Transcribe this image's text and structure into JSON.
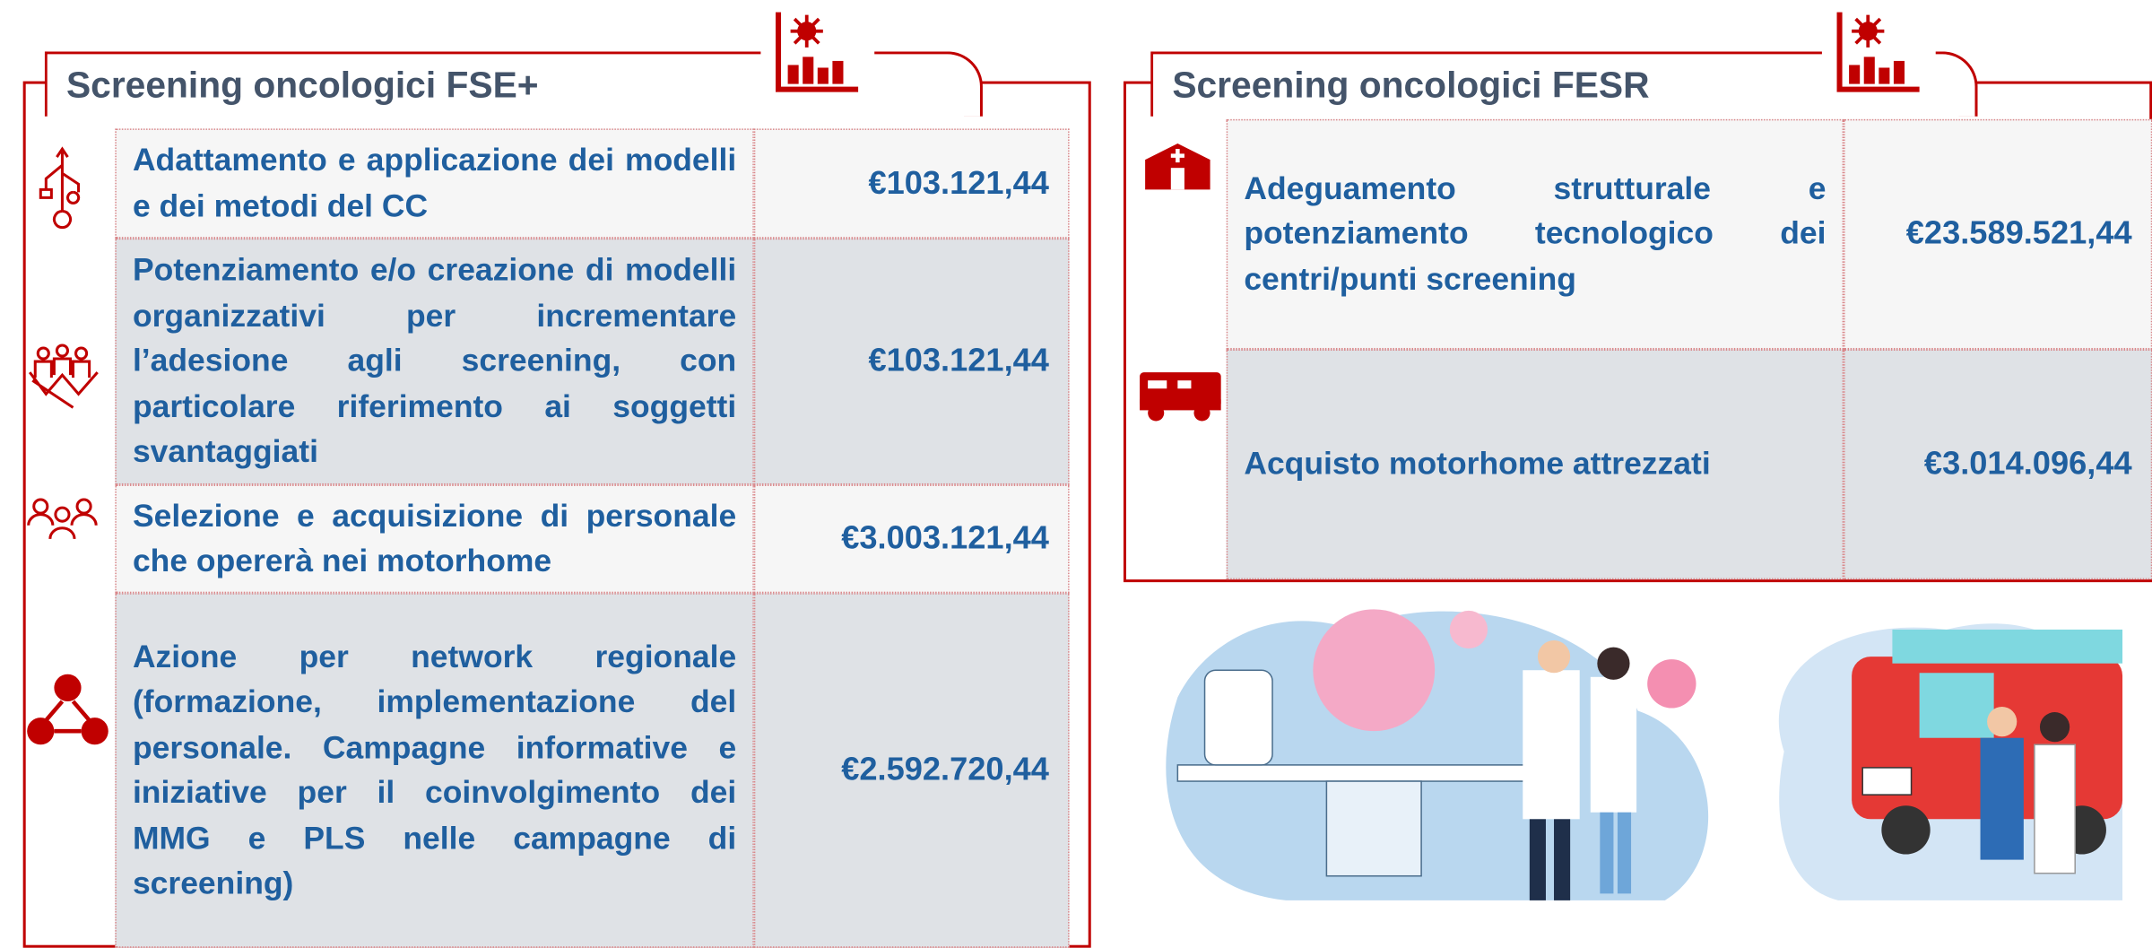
{
  "left_panel": {
    "title": "Screening oncologici FSE+",
    "rows": [
      {
        "label": "Adattamento e applicazione dei modelli e dei metodi del CC",
        "amount": "€103.121,44"
      },
      {
        "label": "Potenziamento e/o creazione di modelli organizzativi per incrementare l’adesione agli screening, con particolare riferimento ai soggetti svantaggiati",
        "amount": "€103.121,44"
      },
      {
        "label": "Selezione e acquisizione di personale che opererà nei motorhome",
        "amount": "€3.003.121,44"
      },
      {
        "label": "Azione per network regionale (formazione, implementazione del personale. Campagne informative e iniziative per il coinvolgimento dei MMG e PLS nelle campagne di screening)",
        "amount": "€2.592.720,44"
      }
    ]
  },
  "right_panel": {
    "title": "Screening oncologici FESR",
    "rows": [
      {
        "label": "Adeguamento strutturale e potenziamento tecnologico dei centri/punti screening",
        "amount": "€23.589.521,44"
      },
      {
        "label": "Acquisto motorhome attrezzati",
        "amount": "€3.014.096,44"
      }
    ]
  }
}
